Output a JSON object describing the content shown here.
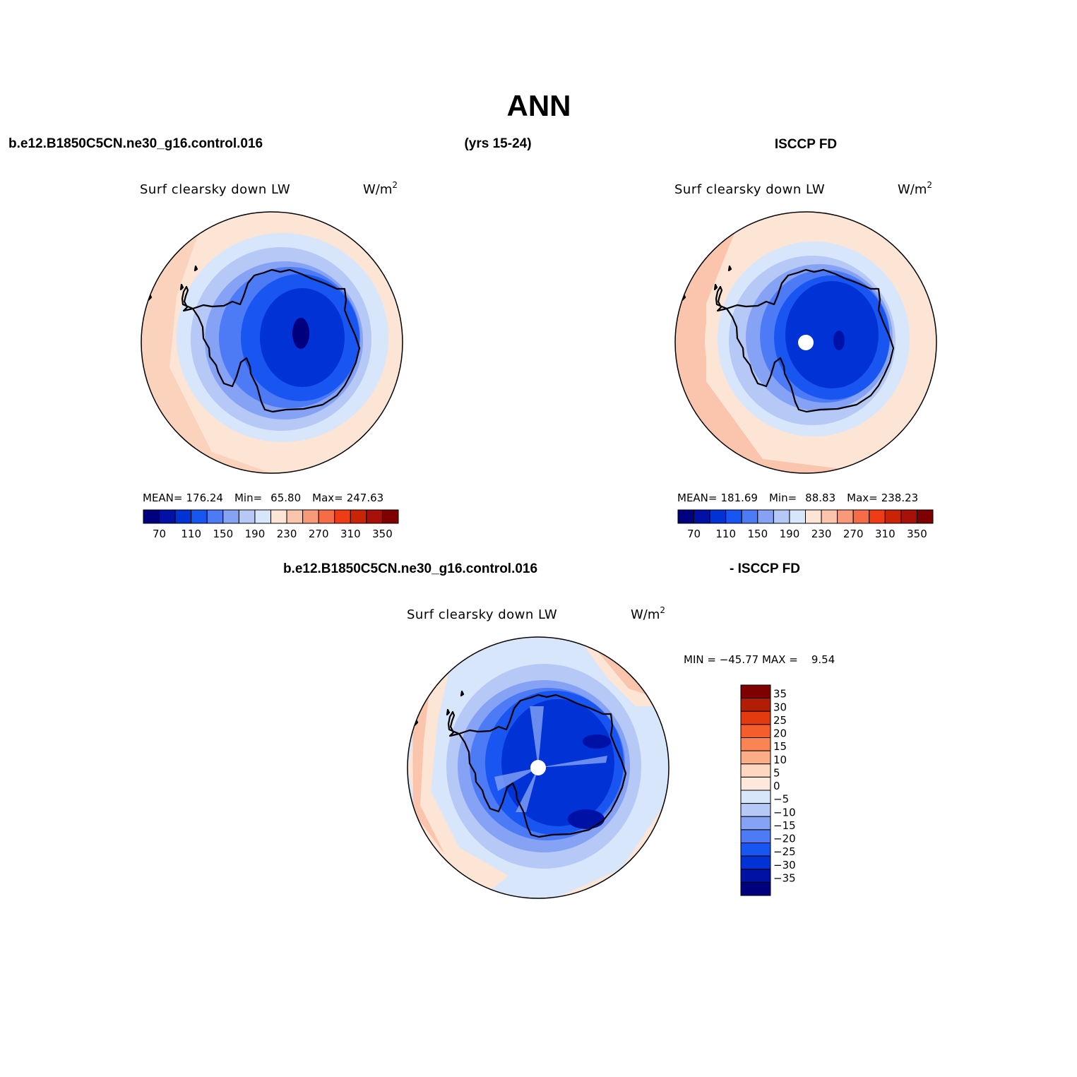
{
  "header": {
    "title": "ANN",
    "case_name": "b.e12.B1850C5CN.ne30_g16.control.016",
    "years": "(yrs 15-24)",
    "obs_name": "ISCCP FD",
    "diff_case": "b.e12.B1850C5CN.ne30_g16.control.016",
    "diff_obs": "- ISCCP FD"
  },
  "panels": {
    "model": {
      "title": "Surf clearsky down LW",
      "units": "W/m",
      "units_sup": "2",
      "mean_label": "MEAN=",
      "mean": "176.24",
      "min_label": "Min=",
      "min": "65.80",
      "max_label": "Max=",
      "max": "247.63"
    },
    "obs": {
      "title": "Surf clearsky down LW",
      "units": "W/m",
      "units_sup": "2",
      "mean_label": "MEAN=",
      "mean": "181.69",
      "min_label": "Min=",
      "min": "88.83",
      "max_label": "Max=",
      "max": "238.23"
    },
    "diff": {
      "title": "Surf clearsky down LW",
      "units": "W/m",
      "units_sup": "2",
      "minmax": "MIN = −45.77 MAX =    9.54"
    }
  },
  "colorbar_h": {
    "colors": [
      "#00007f",
      "#0011a6",
      "#0032d6",
      "#1955f0",
      "#4d7af5",
      "#85a2f5",
      "#b5c8f6",
      "#d7e6fb",
      "#fde5d6",
      "#fbc4ad",
      "#f89a7a",
      "#f66c47",
      "#f03c15",
      "#c92405",
      "#a8110a",
      "#7f0000"
    ],
    "labels": [
      "70",
      "110",
      "150",
      "190",
      "230",
      "270",
      "310",
      "350"
    ]
  },
  "colorbar_v": {
    "colors": [
      "#7f0000",
      "#b21e05",
      "#e33b0f",
      "#f45e2c",
      "#fb8552",
      "#fbad88",
      "#fdd7c0",
      "#fde9dc",
      "#d7e6fb",
      "#b5c8f6",
      "#85a2f5",
      "#4d7af5",
      "#1955f0",
      "#0032d6",
      "#0011a6",
      "#00007f"
    ],
    "labels": [
      "35",
      "30",
      "25",
      "20",
      "15",
      "10",
      "5",
      "0",
      "−5",
      "−10",
      "−15",
      "−20",
      "−25",
      "−30",
      "−35"
    ]
  }
}
